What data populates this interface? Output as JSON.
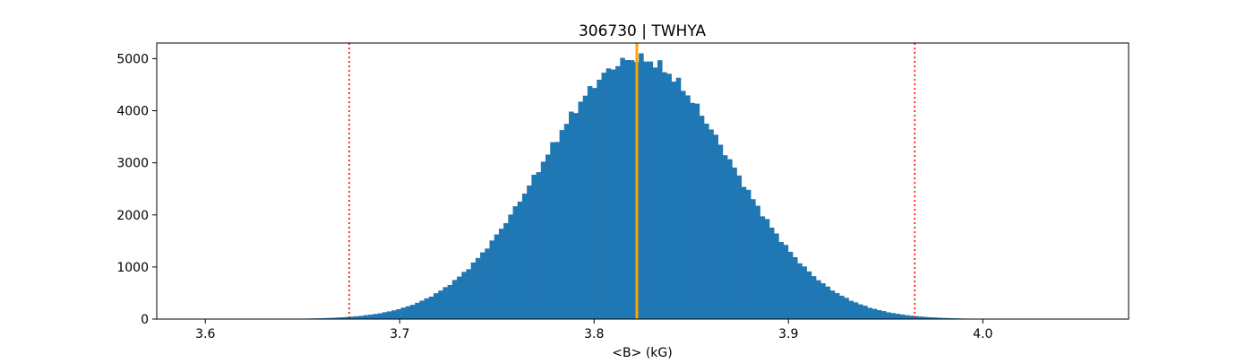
{
  "chart_data": {
    "type": "bar",
    "title": "306730 | TWHYA",
    "xlabel": "<B> (kG)",
    "ylabel": "",
    "xlim": [
      3.575,
      4.075
    ],
    "ylim": [
      0,
      5300
    ],
    "x_ticks": [
      3.6,
      3.7,
      3.8,
      3.9,
      4.0
    ],
    "x_tick_labels": [
      "3.6",
      "3.7",
      "3.8",
      "3.9",
      "4.0"
    ],
    "y_ticks": [
      0,
      1000,
      2000,
      3000,
      4000,
      5000
    ],
    "y_tick_labels": [
      "0",
      "1000",
      "2000",
      "3000",
      "4000",
      "5000"
    ],
    "grid": false,
    "histogram": {
      "mean": 3.822,
      "sigma": 0.048,
      "peak_count": 5000,
      "bin_width": 0.0024,
      "range": [
        3.595,
        4.062
      ],
      "bar_color": "#1f77b4"
    },
    "reference_lines": [
      {
        "label": "median",
        "x": 3.822,
        "color": "#ffa500",
        "style": "solid"
      },
      {
        "label": "lower bound",
        "x": 3.674,
        "color": "#ff0000",
        "style": "dotted"
      },
      {
        "label": "upper bound",
        "x": 3.965,
        "color": "#ff0000",
        "style": "dotted"
      }
    ]
  }
}
